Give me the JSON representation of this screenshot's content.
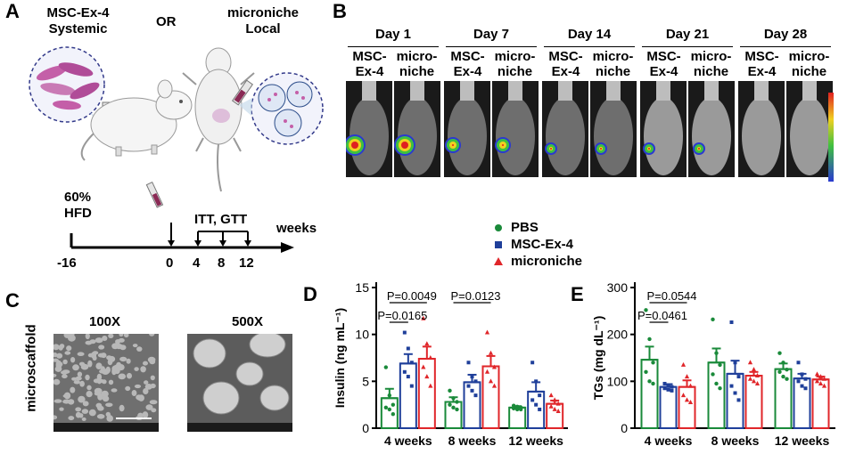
{
  "panelA": {
    "label": "A",
    "left_title": [
      "MSC-Ex-4",
      "Systemic"
    ],
    "or": "OR",
    "right_title": [
      "microniche",
      "Local"
    ],
    "hfd": [
      "60%",
      "HFD"
    ],
    "itt_gtt": "ITT, GTT",
    "weeks": "weeks",
    "ticks": [
      "-16",
      "0",
      "4",
      "8",
      "12"
    ]
  },
  "panelB": {
    "label": "B",
    "days": [
      "Day 1",
      "Day 7",
      "Day 14",
      "Day 21",
      "Day 28"
    ],
    "sub1": [
      "MSC-",
      "Ex-4"
    ],
    "sub2": [
      "micro-",
      "niche"
    ]
  },
  "panelC": {
    "label": "C",
    "side": "microscaffold",
    "mag1": "100X",
    "mag2": "500X"
  },
  "legend": {
    "items": [
      {
        "name": "PBS",
        "color": "#1a8a3a",
        "marker": "circle"
      },
      {
        "name": "MSC-Ex-4",
        "color": "#1f3f9a",
        "marker": "square"
      },
      {
        "name": "microniche",
        "color": "#e0262a",
        "marker": "triangle"
      }
    ]
  },
  "chart_data": [
    {
      "panel": "D",
      "type": "bar",
      "ylabel": "Insulin (ng mL⁻¹)",
      "ylim": [
        0,
        15
      ],
      "yticks": [
        "0",
        "5",
        "10",
        "15"
      ],
      "categories": [
        "4 weeks",
        "8 weeks",
        "12 weeks"
      ],
      "series": [
        {
          "name": "PBS",
          "values": [
            3.2,
            2.8,
            2.2
          ],
          "sem": [
            1.0,
            0.5,
            0.15
          ],
          "points": [
            [
              6.5,
              3.5,
              2.5,
              2.2,
              2.0,
              1.5
            ],
            [
              4.0,
              3.2,
              2.8,
              2.5,
              2.2,
              2.0
            ],
            [
              2.4,
              2.3,
              2.2,
              2.1,
              2.0,
              2.0
            ]
          ]
        },
        {
          "name": "MSC-Ex-4",
          "values": [
            6.9,
            4.9,
            3.9
          ],
          "sem": [
            1.0,
            0.8,
            1.0
          ],
          "points": [
            [
              10.2,
              8.5,
              7.0,
              6.0,
              5.5,
              4.5
            ],
            [
              7.0,
              5.5,
              5.0,
              4.5,
              4.0,
              3.5
            ],
            [
              7.0,
              5.0,
              3.5,
              3.0,
              2.5,
              2.0
            ]
          ]
        },
        {
          "name": "microniche",
          "values": [
            7.4,
            6.6,
            2.6
          ],
          "sem": [
            1.3,
            1.1,
            0.35
          ],
          "points": [
            [
              11.7,
              9.0,
              7.5,
              6.5,
              5.5,
              4.5
            ],
            [
              10.2,
              8.0,
              6.5,
              6.0,
              5.0,
              4.5
            ],
            [
              3.5,
              3.0,
              2.6,
              2.3,
              2.0,
              1.8
            ]
          ]
        }
      ],
      "annotations": [
        {
          "text": "P=0.0049",
          "from": [
            0,
            0
          ],
          "to": [
            0,
            2
          ]
        },
        {
          "text": "P=0.0165",
          "from": [
            0,
            0
          ],
          "to": [
            0,
            1
          ]
        },
        {
          "text": "P=0.0123",
          "from": [
            1,
            0
          ],
          "to": [
            1,
            2
          ]
        }
      ]
    },
    {
      "panel": "E",
      "type": "bar",
      "ylabel": "TGs (mg dL⁻¹)",
      "ylim": [
        0,
        300
      ],
      "yticks": [
        "0",
        "100",
        "200",
        "300"
      ],
      "categories": [
        "4 weeks",
        "8 weeks",
        "12 weeks"
      ],
      "series": [
        {
          "name": "PBS",
          "values": [
            146,
            140,
            126
          ],
          "sem": [
            28,
            30,
            12
          ],
          "points": [
            [
              252,
              190,
              140,
              120,
              100,
              95
            ],
            [
              232,
              160,
              135,
              115,
              95,
              85
            ],
            [
              160,
              140,
              125,
              120,
              110,
              105
            ]
          ]
        },
        {
          "name": "MSC-Ex-4",
          "values": [
            88,
            116,
            106
          ],
          "sem": [
            6,
            28,
            10
          ],
          "points": [
            [
              95,
              92,
              88,
              85,
              82,
              80
            ],
            [
              226,
              140,
              110,
              90,
              75,
              60
            ],
            [
              140,
              115,
              105,
              100,
              90,
              85
            ]
          ]
        },
        {
          "name": "microniche",
          "values": [
            88,
            112,
            104
          ],
          "sem": [
            14,
            8,
            6
          ],
          "points": [
            [
              135,
              110,
              90,
              70,
              60,
              55
            ],
            [
              140,
              125,
              112,
              105,
              100,
              95
            ],
            [
              115,
              110,
              105,
              100,
              95,
              90
            ]
          ]
        }
      ],
      "annotations": [
        {
          "text": "P=0.0544",
          "from": [
            0,
            0
          ],
          "to": [
            0,
            2
          ]
        },
        {
          "text": "P=0.0461",
          "from": [
            0,
            0
          ],
          "to": [
            0,
            1
          ]
        }
      ]
    }
  ]
}
